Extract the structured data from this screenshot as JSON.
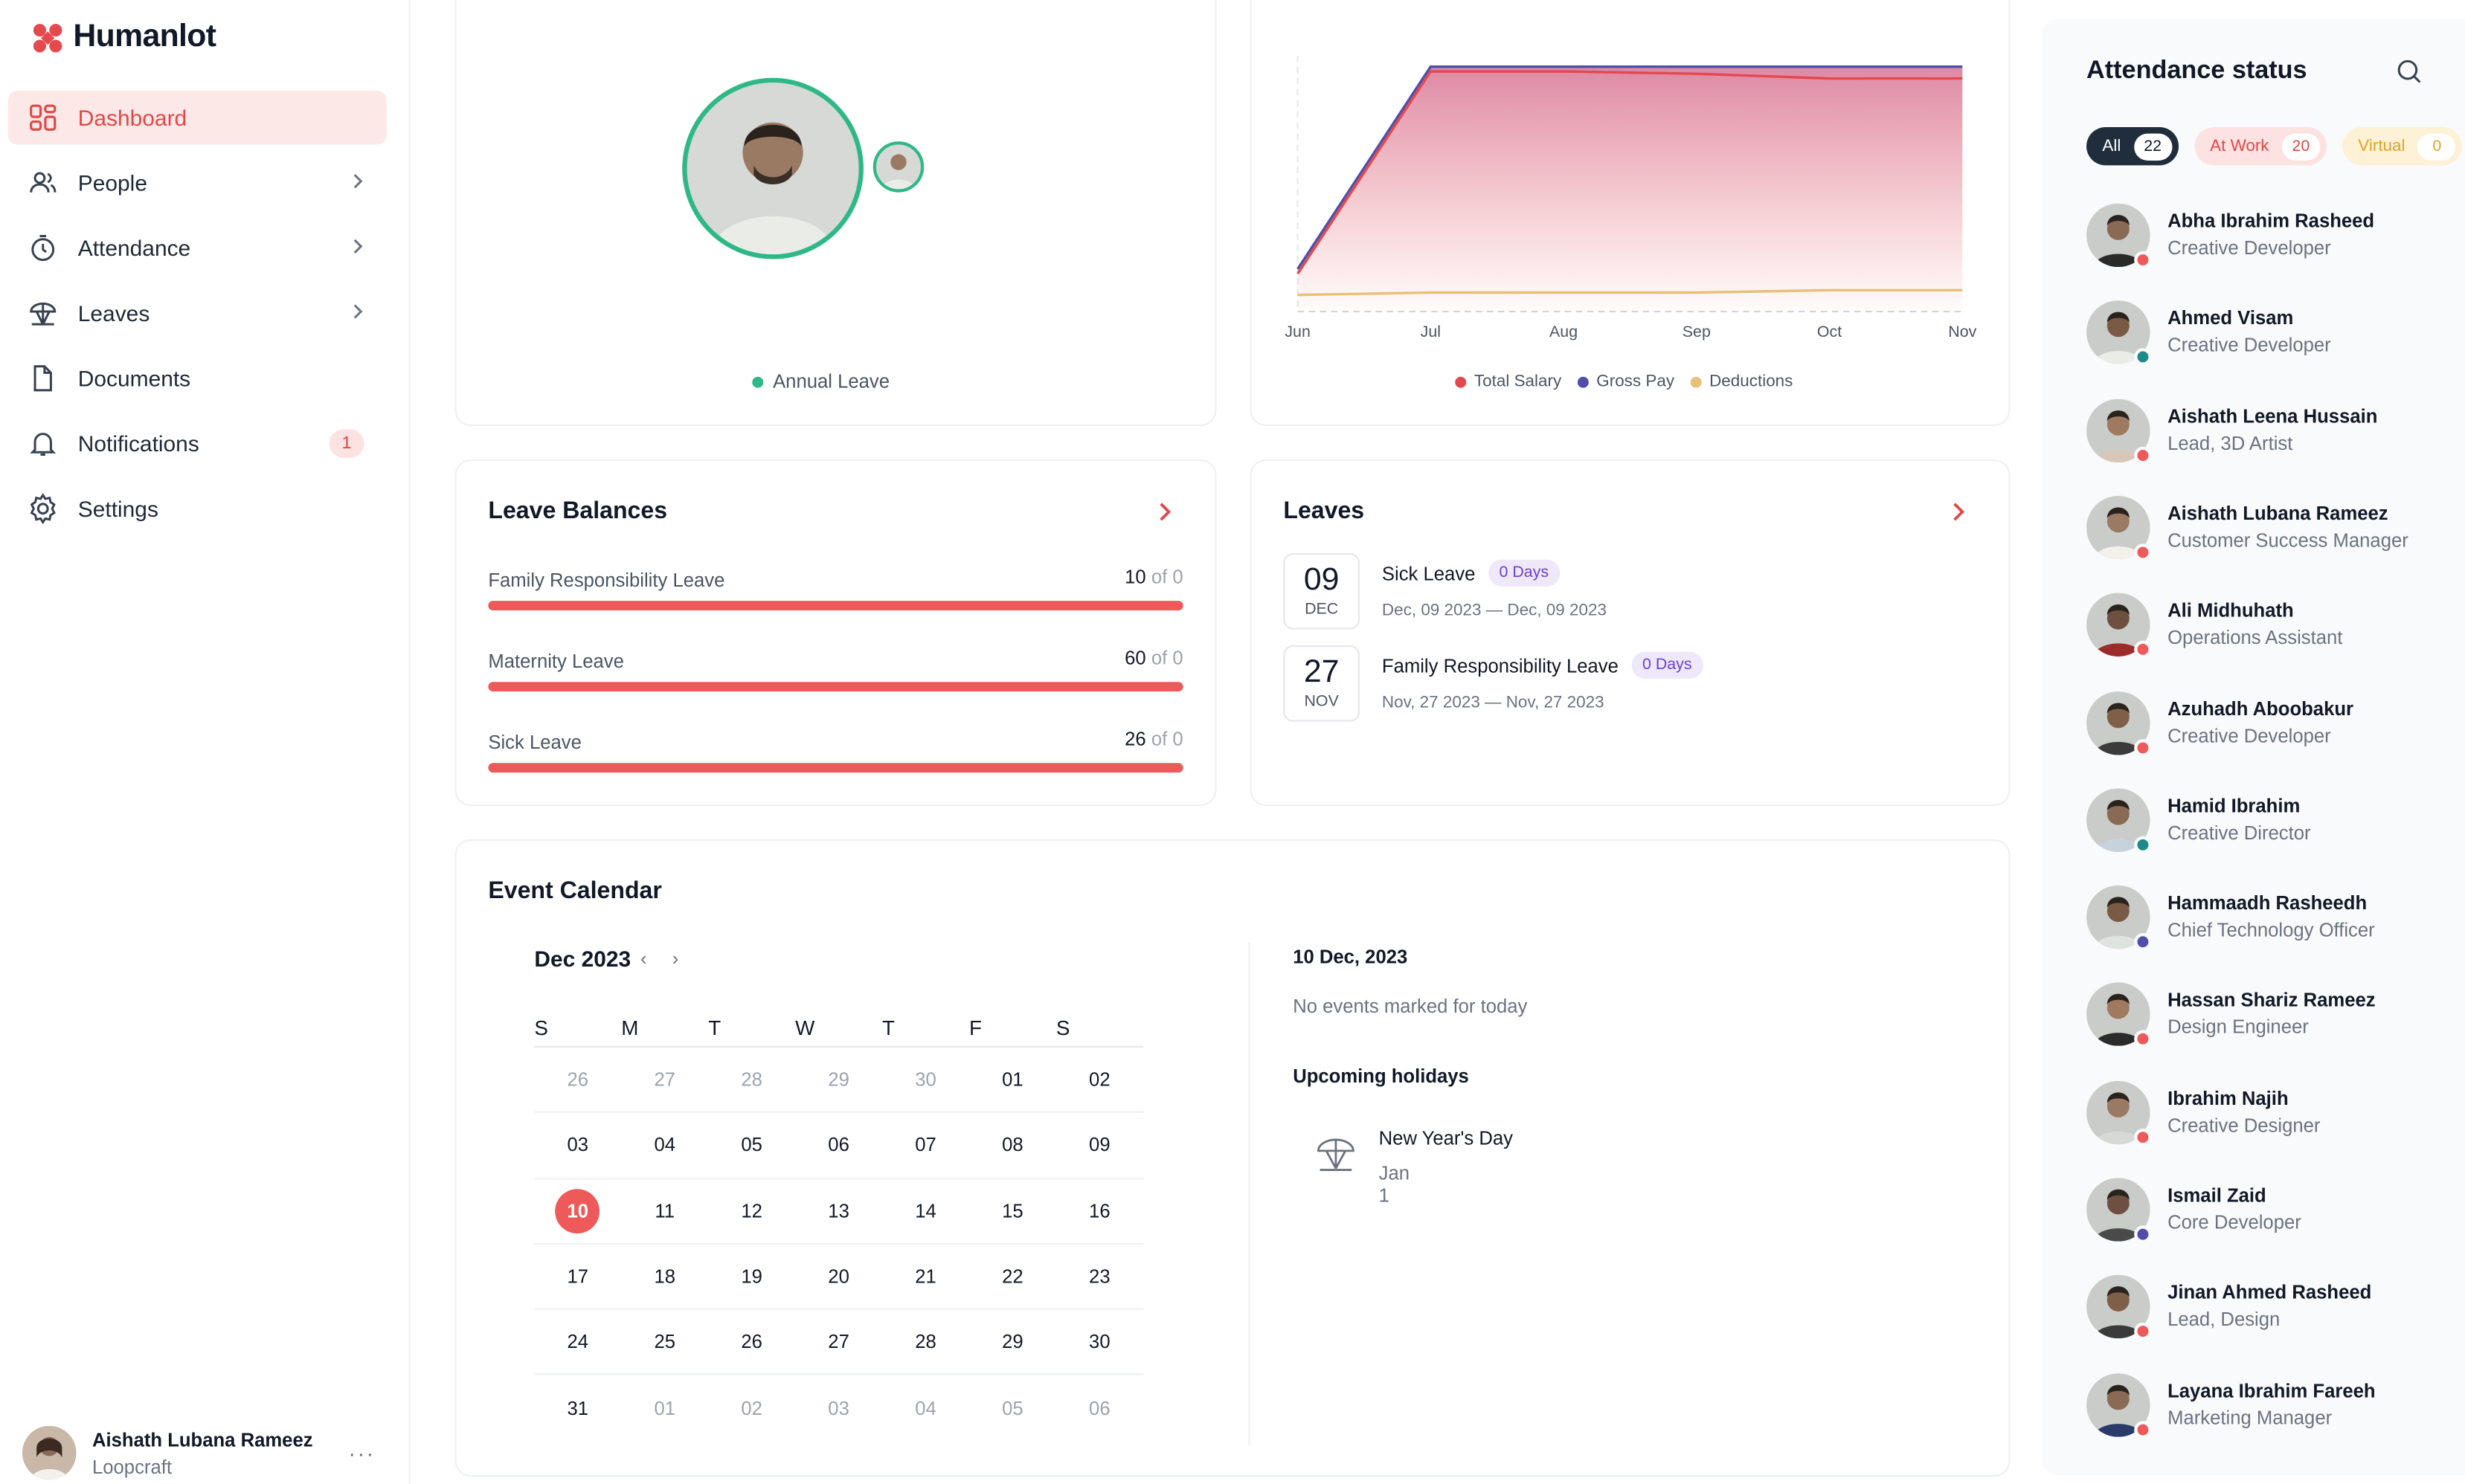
{
  "brand": {
    "name": "Humanlot",
    "accent": "#e04848"
  },
  "nav": {
    "items": [
      {
        "label": "Dashboard",
        "icon": "dashboard-icon",
        "active": true
      },
      {
        "label": "People",
        "icon": "people-icon"
      },
      {
        "label": "Attendance",
        "icon": "stopwatch-icon"
      },
      {
        "label": "Leaves",
        "icon": "umbrella-icon"
      },
      {
        "label": "Documents",
        "icon": "document-icon"
      },
      {
        "label": "Notifications",
        "icon": "bell-icon",
        "badge": "1"
      },
      {
        "label": "Settings",
        "icon": "gear-icon"
      }
    ]
  },
  "profile": {
    "name": "Aishath Lubana Rameez",
    "org": "Loopcraft",
    "more": "···"
  },
  "leave_card": {
    "legend": "Annual Leave",
    "legend_color": "#2fb887"
  },
  "salary_chart": {
    "chart_data": {
      "type": "area",
      "x": [
        "Jun",
        "Jul",
        "Aug",
        "Sep",
        "Oct",
        "Nov"
      ],
      "series": [
        {
          "name": "Total Salary",
          "color": "#e5484d",
          "values": [
            10,
            96,
            96,
            95,
            93,
            93
          ]
        },
        {
          "name": "Gross Pay",
          "color": "#4f4fa8",
          "values": [
            12,
            98,
            98,
            98,
            98,
            98
          ]
        },
        {
          "name": "Deductions",
          "color": "#e8c07a",
          "values": [
            1,
            2,
            2,
            2,
            3,
            3
          ]
        }
      ],
      "ylim": [
        0,
        100
      ]
    }
  },
  "leave_balances": {
    "title": "Leave Balances",
    "items": [
      {
        "label": "Family Responsibility Leave",
        "value": "10",
        "of": "of 0"
      },
      {
        "label": "Maternity Leave",
        "value": "60",
        "of": "of 0"
      },
      {
        "label": "Sick Leave",
        "value": "26",
        "of": "of 0"
      }
    ]
  },
  "leaves": {
    "title": "Leaves",
    "items": [
      {
        "day": "09",
        "month": "DEC",
        "type": "Sick Leave",
        "days": "0 Days",
        "range": "Dec, 09 2023 — Dec, 09 2023"
      },
      {
        "day": "27",
        "month": "NOV",
        "type": "Family Responsibility Leave",
        "days": "0 Days",
        "range": "Nov, 27 2023 — Nov, 27 2023"
      }
    ]
  },
  "calendar": {
    "title": "Event Calendar",
    "month": "Dec 2023",
    "prev": "‹",
    "next": "›",
    "dow": [
      "S",
      "M",
      "T",
      "W",
      "T",
      "F",
      "S"
    ],
    "weeks": [
      [
        "26",
        "27",
        "28",
        "29",
        "30",
        "01",
        "02"
      ],
      [
        "03",
        "04",
        "05",
        "06",
        "07",
        "08",
        "09"
      ],
      [
        "10",
        "11",
        "12",
        "13",
        "14",
        "15",
        "16"
      ],
      [
        "17",
        "18",
        "19",
        "20",
        "21",
        "22",
        "23"
      ],
      [
        "24",
        "25",
        "26",
        "27",
        "28",
        "29",
        "30"
      ],
      [
        "31",
        "01",
        "02",
        "03",
        "04",
        "05",
        "06"
      ]
    ],
    "today": "10",
    "selected_date": "10 Dec, 2023",
    "no_events": "No events marked for today",
    "upcoming_label": "Upcoming holidays",
    "holidays": [
      {
        "name": "New Year's Day",
        "date": "Jan 1"
      }
    ]
  },
  "attendance": {
    "title": "Attendance status",
    "filters": [
      {
        "label": "All",
        "count": "22"
      },
      {
        "label": "At Work",
        "count": "20"
      },
      {
        "label": "Virtual",
        "count": "0"
      }
    ],
    "status_colors": {
      "work": "#ee5a5a",
      "teal": "#1f8a8a",
      "virtual": "#4f4fa8"
    },
    "employees": [
      {
        "name": "Abha Ibrahim Rasheed",
        "role": "Creative Developer",
        "status": "work"
      },
      {
        "name": "Ahmed Visam",
        "role": "Creative Developer",
        "status": "teal"
      },
      {
        "name": "Aishath Leena Hussain",
        "role": "Lead, 3D Artist",
        "status": "work"
      },
      {
        "name": "Aishath Lubana Rameez",
        "role": "Customer Success Manager",
        "status": "work"
      },
      {
        "name": "Ali Midhuhath",
        "role": "Operations Assistant",
        "status": "work"
      },
      {
        "name": "Azuhadh Aboobakur",
        "role": "Creative Developer",
        "status": "work"
      },
      {
        "name": "Hamid Ibrahim",
        "role": "Creative Director",
        "status": "teal"
      },
      {
        "name": "Hammaadh Rasheedh",
        "role": "Chief Technology Officer",
        "status": "virtual"
      },
      {
        "name": "Hassan Shariz Rameez",
        "role": "Design Engineer",
        "status": "work"
      },
      {
        "name": "Ibrahim Najih",
        "role": "Creative Designer",
        "status": "work"
      },
      {
        "name": "Ismail Zaid",
        "role": "Core Developer",
        "status": "virtual"
      },
      {
        "name": "Jinan Ahmed Rasheed",
        "role": "Lead, Design",
        "status": "work"
      },
      {
        "name": "Layana Ibrahim Fareeh",
        "role": "Marketing Manager",
        "status": "work"
      }
    ]
  }
}
